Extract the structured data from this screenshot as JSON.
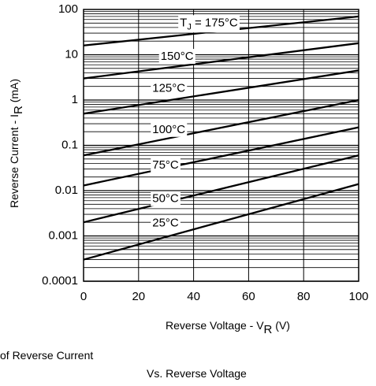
{
  "chart_data": {
    "type": "line",
    "xlabel": "Reverse Voltage - V",
    "xlabel_sub": "R",
    "xlabel_unit": "(V)",
    "ylabel": "Reverse Current - I",
    "ylabel_sub": "R",
    "ylabel_unit": "(mA)",
    "xlim": [
      0,
      100
    ],
    "ylim": [
      0.0001,
      100
    ],
    "yscale": "log",
    "grid": true,
    "x_ticks": [
      0,
      20,
      40,
      60,
      80,
      100
    ],
    "x_tick_labels": [
      "0",
      "20",
      "40",
      "60",
      "80",
      "100"
    ],
    "y_ticks": [
      0.0001,
      0.001,
      0.01,
      0.1,
      1,
      10,
      100
    ],
    "y_tick_labels": [
      "0.0001",
      "0.001",
      "0.01",
      "0.1",
      "1",
      "10",
      "100"
    ],
    "series": [
      {
        "name": "T",
        "name_sub": "J",
        "name_suffix": " = 175°C",
        "x": [
          0,
          100
        ],
        "y": [
          16,
          70
        ],
        "label_x": 35,
        "label_y": 50
      },
      {
        "name": "150°C",
        "x": [
          0,
          100
        ],
        "y": [
          3,
          18
        ],
        "label_x": 28,
        "label_y": 9
      },
      {
        "name": "125°C",
        "x": [
          0,
          100
        ],
        "y": [
          0.5,
          4.5
        ],
        "label_x": 25,
        "label_y": 1.8
      },
      {
        "name": "100°C",
        "x": [
          0,
          100
        ],
        "y": [
          0.06,
          1
        ],
        "label_x": 25,
        "label_y": 0.22
      },
      {
        "name": "75°C",
        "x": [
          0,
          100
        ],
        "y": [
          0.013,
          0.25
        ],
        "label_x": 25,
        "label_y": 0.036
      },
      {
        "name": "50°C",
        "x": [
          0,
          100
        ],
        "y": [
          0.002,
          0.06
        ],
        "label_x": 25,
        "label_y": 0.0065
      },
      {
        "name": "25°C",
        "x": [
          0,
          100
        ],
        "y": [
          0.0003,
          0.014
        ],
        "label_x": 25,
        "label_y": 0.0019
      }
    ]
  },
  "caption": {
    "line1": "of Reverse Current",
    "line2": "Vs. Reverse Voltage"
  }
}
